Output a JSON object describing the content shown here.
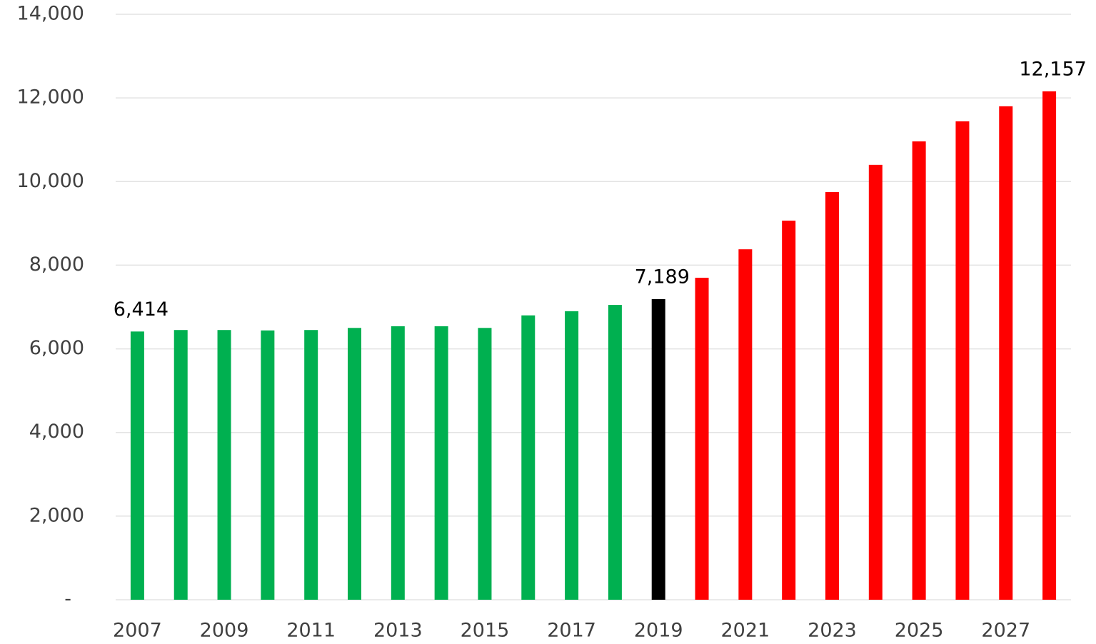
{
  "chart_data": {
    "type": "bar",
    "categories": [
      "2007",
      null,
      "2009",
      null,
      "2011",
      null,
      "2013",
      null,
      "2015",
      null,
      "2017",
      null,
      "2019",
      null,
      "2021",
      null,
      "2023",
      null,
      "2025",
      null,
      "2027",
      null
    ],
    "values": [
      6414,
      6450,
      6450,
      6440,
      6450,
      6500,
      6540,
      6540,
      6500,
      6800,
      6900,
      7050,
      7189,
      7700,
      8380,
      9065,
      9750,
      10400,
      10960,
      11440,
      11800,
      12157
    ],
    "value_labels": [
      "6,414",
      null,
      null,
      null,
      null,
      null,
      null,
      null,
      null,
      null,
      null,
      null,
      "7,189",
      null,
      null,
      null,
      null,
      null,
      null,
      null,
      null,
      "12,157"
    ],
    "colors": [
      "#00b050",
      "#00b050",
      "#00b050",
      "#00b050",
      "#00b050",
      "#00b050",
      "#00b050",
      "#00b050",
      "#00b050",
      "#00b050",
      "#00b050",
      "#00b050",
      "#000000",
      "#ff0000",
      "#ff0000",
      "#ff0000",
      "#ff0000",
      "#ff0000",
      "#ff0000",
      "#ff0000",
      "#ff0000",
      "#ff0000"
    ],
    "ylim": [
      0,
      14000
    ],
    "yticks": [
      {
        "value": 0,
        "label": "-"
      },
      {
        "value": 2000,
        "label": "2,000"
      },
      {
        "value": 4000,
        "label": "4,000"
      },
      {
        "value": 6000,
        "label": "6,000"
      },
      {
        "value": 8000,
        "label": "8,000"
      },
      {
        "value": 10000,
        "label": "10,000"
      },
      {
        "value": 12000,
        "label": "12,000"
      },
      {
        "value": 14000,
        "label": "14,000"
      }
    ],
    "grid": true
  }
}
